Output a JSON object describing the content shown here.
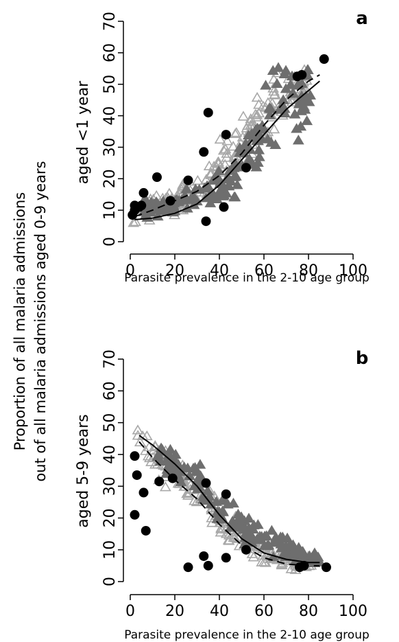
{
  "figure": {
    "ylabel_line1": "Proportion of all malaria admissions",
    "ylabel_line2": "out of all malaria admissions aged 0-9 years"
  },
  "colors": {
    "triangle_light": "#a8a8a8",
    "triangle_dark": "#6e6e6e",
    "observed_point": "#000000",
    "fit_line": "#000000"
  },
  "chart_data": [
    {
      "type": "scatter",
      "panel_letter": "a",
      "ylabel": "aged <1 year",
      "xlabel": "Parasite prevalence in the 2-10 age group",
      "xlim": [
        0,
        100
      ],
      "ylim": [
        0,
        70
      ],
      "xticks": [
        0,
        20,
        40,
        60,
        80,
        100
      ],
      "yticks": [
        0,
        10,
        20,
        30,
        40,
        50,
        60,
        70
      ],
      "grid": false,
      "observed_points": {
        "marker": "filled-circle",
        "x": [
          1,
          2,
          2,
          4,
          5,
          6,
          12,
          18,
          26,
          33,
          34,
          35,
          42,
          43,
          52,
          75,
          77,
          87
        ],
        "y": [
          8.5,
          10,
          11.5,
          11,
          11.5,
          15.5,
          20.5,
          13,
          19.5,
          28.5,
          6.5,
          41,
          11,
          34,
          23.5,
          52.5,
          53,
          58
        ]
      },
      "simulated_clouds": [
        {
          "marker": "open-triangle",
          "shade": "light",
          "x_center": [
            3,
            10,
            18,
            26,
            34,
            42,
            50,
            58,
            65,
            72,
            78
          ],
          "y_center": [
            8,
            11,
            12,
            15,
            20,
            26,
            31,
            38,
            45,
            47,
            48
          ],
          "y_spread": [
            3,
            3,
            3,
            4,
            5,
            6,
            7,
            7,
            8,
            8,
            7
          ]
        },
        {
          "marker": "filled-triangle",
          "shade": "dark",
          "x_center": [
            8,
            16,
            26,
            36,
            46,
            54,
            62,
            68,
            74,
            80
          ],
          "y_center": [
            11,
            11,
            13,
            16,
            22,
            28,
            40,
            50,
            44,
            45
          ],
          "y_spread": [
            3,
            3,
            3,
            5,
            6,
            7,
            12,
            10,
            10,
            9
          ]
        }
      ],
      "fit_lines": [
        {
          "style": "solid",
          "x": [
            2,
            10,
            20,
            30,
            40,
            50,
            60,
            70,
            80,
            85
          ],
          "y": [
            7,
            7.5,
            9,
            12,
            18,
            26,
            34,
            42,
            48,
            51
          ]
        },
        {
          "style": "dashed",
          "x": [
            2,
            10,
            20,
            30,
            40,
            50,
            60,
            70,
            80,
            85
          ],
          "y": [
            8,
            10,
            13,
            16,
            21,
            28,
            37,
            45,
            51,
            53
          ]
        }
      ]
    },
    {
      "type": "scatter",
      "panel_letter": "b",
      "ylabel": "aged 5-9 years",
      "xlabel": "Parasite prevalence in the 2-10 age group",
      "xlim": [
        0,
        100
      ],
      "ylim": [
        0,
        70
      ],
      "xticks": [
        0,
        20,
        40,
        60,
        80,
        100
      ],
      "yticks": [
        0,
        10,
        20,
        30,
        40,
        50,
        60,
        70
      ],
      "grid": false,
      "observed_points": {
        "marker": "filled-circle",
        "x": [
          2,
          3,
          2,
          6,
          7,
          13,
          19,
          26,
          33,
          34,
          35,
          43,
          43,
          52,
          76,
          78,
          88
        ],
        "y": [
          39.5,
          33.5,
          21,
          28,
          16,
          31.5,
          32.5,
          4.5,
          8,
          31,
          5,
          27.5,
          7.5,
          10,
          4.5,
          5,
          4.5
        ]
      },
      "simulated_clouds": [
        {
          "marker": "open-triangle",
          "shade": "light",
          "x_center": [
            4,
            10,
            18,
            26,
            34,
            42,
            50,
            58,
            66,
            74,
            80
          ],
          "y_center": [
            46,
            40,
            34,
            30,
            26,
            18,
            14,
            10,
            7,
            6,
            6
          ],
          "y_spread": [
            7,
            5,
            5,
            4,
            4,
            4,
            4,
            3,
            2,
            2,
            2
          ]
        },
        {
          "marker": "filled-triangle",
          "shade": "dark",
          "x_center": [
            14,
            22,
            30,
            38,
            46,
            54,
            62,
            70,
            78,
            84
          ],
          "y_center": [
            38,
            35,
            32,
            24,
            19,
            15,
            12,
            10,
            8,
            7
          ],
          "y_spread": [
            4,
            4,
            5,
            5,
            4,
            4,
            4,
            3,
            2,
            2
          ]
        }
      ],
      "fit_lines": [
        {
          "style": "solid",
          "x": [
            4,
            10,
            20,
            30,
            40,
            50,
            60,
            70,
            80,
            85
          ],
          "y": [
            46,
            43,
            37,
            30,
            21,
            13.5,
            9,
            7,
            6,
            6
          ]
        },
        {
          "style": "dashed",
          "x": [
            4,
            10,
            20,
            30,
            40,
            50,
            60,
            70,
            80,
            85
          ],
          "y": [
            44,
            39,
            32,
            26,
            18,
            11.5,
            7.5,
            5.5,
            5,
            5
          ]
        }
      ]
    }
  ]
}
